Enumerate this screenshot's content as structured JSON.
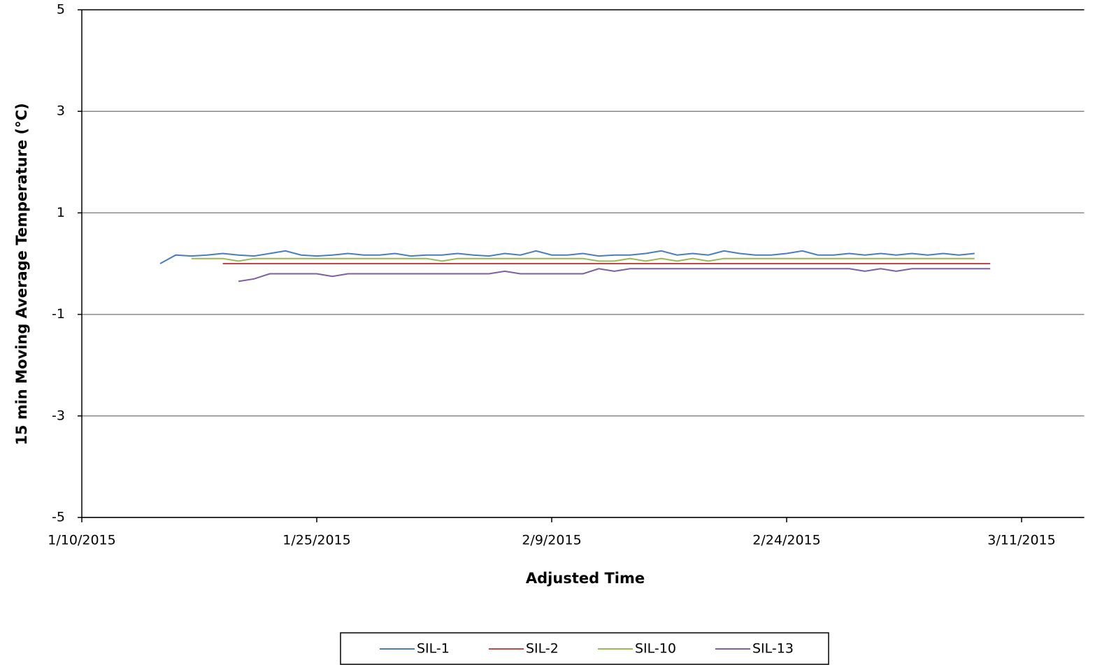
{
  "chart_data": {
    "type": "line",
    "xlabel": "Adjusted Time",
    "ylabel": "15 min  Moving  Average Temperature (°C)",
    "x": [
      "1/15/2015",
      "1/16/2015",
      "1/17/2015",
      "1/18/2015",
      "1/19/2015",
      "1/20/2015",
      "1/21/2015",
      "1/22/2015",
      "1/23/2015",
      "1/24/2015",
      "1/25/2015",
      "1/26/2015",
      "1/27/2015",
      "1/28/2015",
      "1/29/2015",
      "1/30/2015",
      "1/31/2015",
      "2/1/2015",
      "2/2/2015",
      "2/3/2015",
      "2/4/2015",
      "2/5/2015",
      "2/6/2015",
      "2/7/2015",
      "2/8/2015",
      "2/9/2015",
      "2/10/2015",
      "2/11/2015",
      "2/12/2015",
      "2/13/2015",
      "2/14/2015",
      "2/15/2015",
      "2/16/2015",
      "2/17/2015",
      "2/18/2015",
      "2/19/2015",
      "2/20/2015",
      "2/21/2015",
      "2/22/2015",
      "2/23/2015",
      "2/24/2015",
      "2/25/2015",
      "2/26/2015",
      "2/27/2015",
      "2/28/2015",
      "3/1/2015",
      "3/2/2015",
      "3/3/2015",
      "3/4/2015",
      "3/5/2015",
      "3/6/2015",
      "3/7/2015",
      "3/8/2015",
      "3/9/2015"
    ],
    "series": [
      {
        "name": "SIL-1",
        "color": "#4a7ebb",
        "values": [
          0,
          0.17,
          0.15,
          0.17,
          0.2,
          0.17,
          0.15,
          0.2,
          0.25,
          0.17,
          0.15,
          0.17,
          0.2,
          0.17,
          0.17,
          0.2,
          0.15,
          0.17,
          0.17,
          0.2,
          0.17,
          0.15,
          0.2,
          0.17,
          0.25,
          0.17,
          0.17,
          0.2,
          0.15,
          0.17,
          0.17,
          0.2,
          0.25,
          0.17,
          0.2,
          0.17,
          0.25,
          0.2,
          0.17,
          0.17,
          0.2,
          0.25,
          0.17,
          0.17,
          0.2,
          0.17,
          0.2,
          0.17,
          0.2,
          0.17,
          0.2,
          0.17,
          0.2,
          null
        ]
      },
      {
        "name": "SIL-2",
        "color": "#be4b48",
        "values": [
          null,
          null,
          null,
          null,
          0,
          0,
          0,
          0,
          0,
          0,
          0,
          0,
          0,
          0,
          0,
          0,
          0,
          0,
          0,
          0,
          0,
          0,
          0,
          0,
          0,
          0,
          0,
          0,
          0,
          0,
          0,
          0,
          0,
          0,
          0,
          0,
          0,
          0,
          0,
          0,
          0,
          0,
          0,
          0,
          0,
          0,
          0,
          0,
          0,
          0,
          0,
          0,
          0,
          0
        ]
      },
      {
        "name": "SIL-10",
        "color": "#98b954",
        "values": [
          null,
          null,
          0.1,
          0.1,
          0.1,
          0.05,
          0.1,
          0.1,
          0.1,
          0.1,
          0.1,
          0.1,
          0.1,
          0.1,
          0.1,
          0.1,
          0.1,
          0.1,
          0.05,
          0.1,
          0.1,
          0.1,
          0.1,
          0.1,
          0.1,
          0.1,
          0.1,
          0.1,
          0.05,
          0.05,
          0.1,
          0.05,
          0.1,
          0.05,
          0.1,
          0.05,
          0.1,
          0.1,
          0.1,
          0.1,
          0.1,
          0.1,
          0.1,
          0.1,
          0.1,
          0.1,
          0.1,
          0.1,
          0.1,
          0.1,
          0.1,
          0.1,
          0.1,
          null
        ]
      },
      {
        "name": "SIL-13",
        "color": "#7d60a0",
        "values": [
          null,
          null,
          null,
          null,
          null,
          -0.35,
          -0.3,
          -0.2,
          -0.2,
          -0.2,
          -0.2,
          -0.25,
          -0.2,
          -0.2,
          -0.2,
          -0.2,
          -0.2,
          -0.2,
          -0.2,
          -0.2,
          -0.2,
          -0.2,
          -0.15,
          -0.2,
          -0.2,
          -0.2,
          -0.2,
          -0.2,
          -0.1,
          -0.15,
          -0.1,
          -0.1,
          -0.1,
          -0.1,
          -0.1,
          -0.1,
          -0.1,
          -0.1,
          -0.1,
          -0.1,
          -0.1,
          -0.1,
          -0.1,
          -0.1,
          -0.1,
          -0.15,
          -0.1,
          -0.15,
          -0.1,
          -0.1,
          -0.1,
          -0.1,
          -0.1,
          -0.1
        ]
      }
    ],
    "xlim": [
      "1/10/2015",
      "3/15/2015"
    ],
    "xticks": [
      "1/10/2015",
      "1/25/2015",
      "2/9/2015",
      "2/24/2015",
      "3/11/2015"
    ],
    "ylim": [
      -5,
      5
    ],
    "yticks": [
      5,
      3,
      1,
      -1,
      -3,
      -5
    ],
    "grid": true,
    "legend": "bottom"
  }
}
